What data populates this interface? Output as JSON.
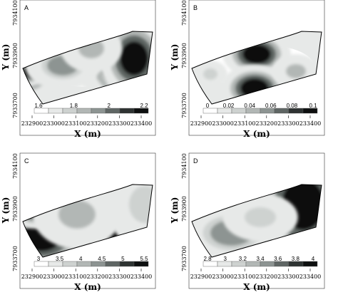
{
  "x_axis": {
    "title": "X (m)",
    "ticks": [
      "232900",
      "233000",
      "233100",
      "233200",
      "233300",
      "233400"
    ]
  },
  "y_axis": {
    "title": "Y (m)",
    "ticks": [
      "7934100",
      "7933900",
      "7933700"
    ]
  },
  "colors": {
    "ramp": [
      "#ffffff",
      "#e7e9e8",
      "#ced2d0",
      "#b2b7b5",
      "#8d9492",
      "#5f6664",
      "#2e3332",
      "#0e1010"
    ],
    "outline": "#000000"
  },
  "panels": [
    {
      "letter": "A",
      "legend": [
        "1.6",
        "1.8",
        "2",
        "2.2"
      ],
      "blobs": [
        {
          "cx": 150,
          "cy": 78,
          "rx": 30,
          "ry": 34,
          "level": 7
        },
        {
          "cx": 160,
          "cy": 82,
          "rx": 20,
          "ry": 24,
          "level": 7
        },
        {
          "cx": 12,
          "cy": 100,
          "rx": 16,
          "ry": 16,
          "level": 7
        },
        {
          "cx": 14,
          "cy": 100,
          "rx": 9,
          "ry": 9,
          "level": 7
        },
        {
          "cx": 60,
          "cy": 92,
          "rx": 22,
          "ry": 14,
          "level": 4
        },
        {
          "cx": 100,
          "cy": 68,
          "rx": 18,
          "ry": 14,
          "level": 3
        }
      ]
    },
    {
      "letter": "B",
      "legend": [
        "0",
        "0.02",
        "0.04",
        "0.06",
        "0.08",
        "0.1"
      ],
      "blobs": [
        {
          "cx": 95,
          "cy": 76,
          "rx": 20,
          "ry": 14,
          "level": 7
        },
        {
          "cx": 92,
          "cy": 124,
          "rx": 20,
          "ry": 14,
          "level": 7
        },
        {
          "cx": 150,
          "cy": 100,
          "rx": 14,
          "ry": 10,
          "level": 3
        },
        {
          "cx": 30,
          "cy": 104,
          "rx": 10,
          "ry": 8,
          "level": 2
        }
      ]
    },
    {
      "letter": "C",
      "legend": [
        "3",
        "3.5",
        "4",
        "4.5",
        "5",
        "5.5"
      ],
      "blobs": [
        {
          "cx": 30,
          "cy": 118,
          "rx": 28,
          "ry": 20,
          "level": 7
        },
        {
          "cx": 130,
          "cy": 104,
          "rx": 18,
          "ry": 18,
          "level": 7
        },
        {
          "cx": 20,
          "cy": 82,
          "rx": 14,
          "ry": 10,
          "level": 6
        },
        {
          "cx": 80,
          "cy": 86,
          "rx": 26,
          "ry": 20,
          "level": 3
        },
        {
          "cx": 175,
          "cy": 72,
          "rx": 22,
          "ry": 26,
          "level": 2
        }
      ]
    },
    {
      "letter": "D",
      "legend": [
        "2.8",
        "3",
        "3.2",
        "3.4",
        "3.6",
        "3.8",
        "4"
      ],
      "blobs": [
        {
          "cx": 160,
          "cy": 72,
          "rx": 30,
          "ry": 36,
          "level": 7
        },
        {
          "cx": 14,
          "cy": 110,
          "rx": 18,
          "ry": 22,
          "level": 7
        },
        {
          "cx": 60,
          "cy": 112,
          "rx": 30,
          "ry": 18,
          "level": 4
        },
        {
          "cx": 100,
          "cy": 90,
          "rx": 22,
          "ry": 14,
          "level": 2
        }
      ]
    }
  ]
}
